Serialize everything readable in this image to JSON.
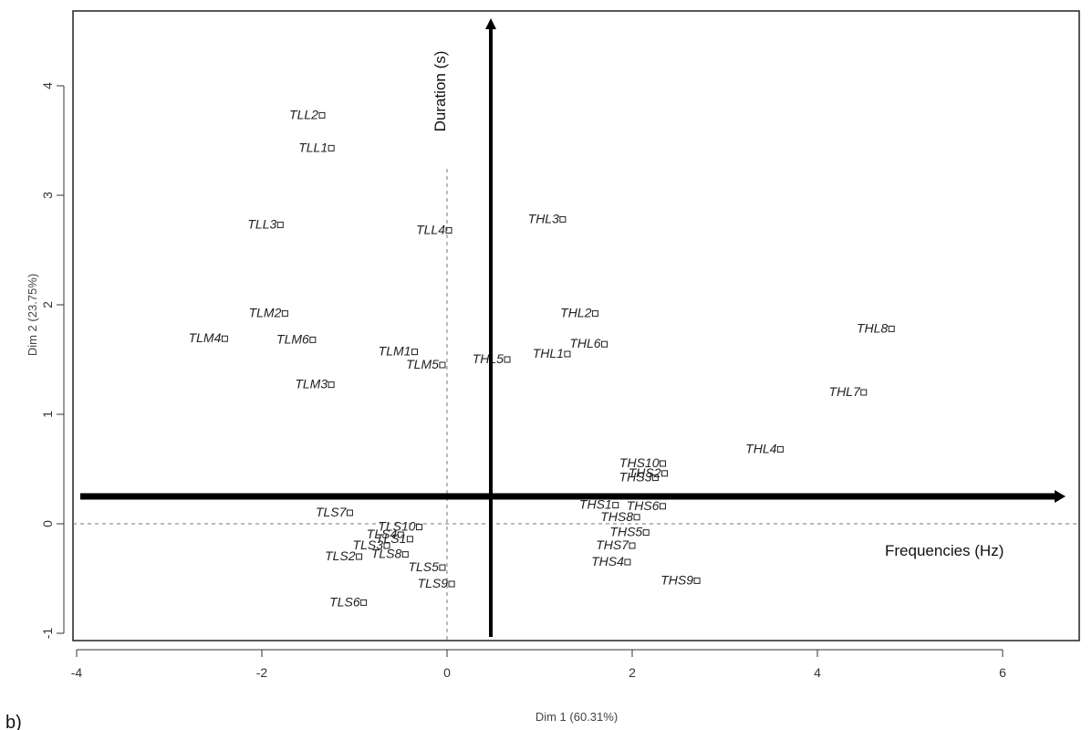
{
  "chart_data": {
    "type": "scatter",
    "xlabel": "Dim 1 (60.31%)",
    "ylabel": "Dim 2 (23.75%)",
    "xlim": [
      -4,
      7
    ],
    "ylim": [
      -1.1,
      4.7
    ],
    "xticks": [
      "-4",
      "-2",
      "0",
      "2",
      "4",
      "6"
    ],
    "yticks": [
      "-1",
      "0",
      "1",
      "2",
      "3",
      "4"
    ],
    "grid": false,
    "reference_lines": {
      "x": 0,
      "y": 0,
      "style": "dashed"
    },
    "points": [
      {
        "label": "TLL2",
        "x": -1.35,
        "y": 3.73
      },
      {
        "label": "TLL1",
        "x": -1.25,
        "y": 3.43
      },
      {
        "label": "TLL3",
        "x": -1.8,
        "y": 2.73
      },
      {
        "label": "TLL4",
        "x": 0.02,
        "y": 2.68
      },
      {
        "label": "TLM2",
        "x": -1.75,
        "y": 1.92
      },
      {
        "label": "TLM4",
        "x": -2.4,
        "y": 1.69
      },
      {
        "label": "TLM6",
        "x": -1.45,
        "y": 1.68
      },
      {
        "label": "TLM1",
        "x": -0.35,
        "y": 1.57
      },
      {
        "label": "TLM5",
        "x": -0.05,
        "y": 1.45
      },
      {
        "label": "TLM3",
        "x": -1.25,
        "y": 1.27
      },
      {
        "label": "THL3",
        "x": 1.25,
        "y": 2.78
      },
      {
        "label": "THL2",
        "x": 1.6,
        "y": 1.92
      },
      {
        "label": "THL5",
        "x": 0.65,
        "y": 1.5
      },
      {
        "label": "THL1",
        "x": 1.3,
        "y": 1.55
      },
      {
        "label": "THL6",
        "x": 1.7,
        "y": 1.64
      },
      {
        "label": "THL8",
        "x": 4.8,
        "y": 1.78
      },
      {
        "label": "THL7",
        "x": 4.5,
        "y": 1.2
      },
      {
        "label": "THL4",
        "x": 3.6,
        "y": 0.68
      },
      {
        "label": "THS10",
        "x": 2.33,
        "y": 0.55
      },
      {
        "label": "THS2",
        "x": 2.35,
        "y": 0.46
      },
      {
        "label": "THS3",
        "x": 2.25,
        "y": 0.42
      },
      {
        "label": "THS1",
        "x": 1.82,
        "y": 0.17
      },
      {
        "label": "THS6",
        "x": 2.33,
        "y": 0.16
      },
      {
        "label": "THS8",
        "x": 2.05,
        "y": 0.06
      },
      {
        "label": "THS5",
        "x": 2.15,
        "y": -0.08
      },
      {
        "label": "THS7",
        "x": 2.0,
        "y": -0.2
      },
      {
        "label": "THS4",
        "x": 1.95,
        "y": -0.35
      },
      {
        "label": "THS9",
        "x": 2.7,
        "y": -0.52
      },
      {
        "label": "TLS7",
        "x": -1.05,
        "y": 0.1
      },
      {
        "label": "TLS10",
        "x": -0.3,
        "y": -0.03
      },
      {
        "label": "TLS4",
        "x": -0.5,
        "y": -0.1
      },
      {
        "label": "TLS1",
        "x": -0.4,
        "y": -0.14
      },
      {
        "label": "TLS3",
        "x": -0.65,
        "y": -0.2
      },
      {
        "label": "TLS2",
        "x": -0.95,
        "y": -0.3
      },
      {
        "label": "TLS8",
        "x": -0.45,
        "y": -0.28
      },
      {
        "label": "TLS5",
        "x": -0.05,
        "y": -0.4
      },
      {
        "label": "TLS9",
        "x": 0.05,
        "y": -0.55
      },
      {
        "label": "TLS6",
        "x": -0.9,
        "y": -0.72
      }
    ]
  },
  "annotations": {
    "vertical_arrow_label": "Duration (s)",
    "horizontal_arrow_label": "Frequencies (Hz)",
    "panel_label": "b)"
  },
  "colors": {
    "arrow": "#000000",
    "marker": "#222222",
    "reference_line": "#777777"
  }
}
